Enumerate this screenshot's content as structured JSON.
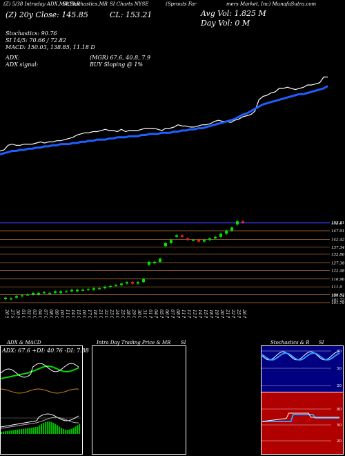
{
  "header": {
    "line1": "(Z) 5/38 Intraday ADX,MACD,R",
    "line1b": "SI,Stochastics,MR",
    "line1c": "SI Charts NYSE",
    "line1d": "(Sprouts Far",
    "line1e": "mers Market, Inc) MunafaSutra.com",
    "price_line": "(Z) 20y Close: 145.85",
    "cl_line": "CL: 153.21",
    "avg_vol": "Avg Vol: 1.825 M",
    "day_vol": "Day Vol: 0  M",
    "stochastics": "Stochastics: 90.76",
    "si": "SI 14/5: 70.66 / 72.82",
    "macd": "MACD: 150.03, 138.85, 11.18 D",
    "adx": "ADX:",
    "adx_vals": "(MGR) 67.6, 40.8, 7.9",
    "adx_signal": "ADX  signal:",
    "adx_signal_val": "BUY Sloping @ 1%"
  },
  "colors": {
    "price_line": "#ffffff",
    "ma_line": "#1f5fff",
    "candle_up": "#00e400",
    "candle_down": "#ff2020",
    "grid": "#c8783c",
    "blue_grid": "#3c3cff"
  },
  "chart_data": [
    {
      "type": "line",
      "title": "",
      "series": [
        {
          "values": [
            95,
            96,
            100,
            101,
            100,
            100,
            101,
            101,
            101,
            102,
            103,
            102,
            103,
            103,
            104,
            104,
            105,
            106,
            107,
            109,
            110,
            111,
            111,
            112,
            112,
            113,
            114,
            113,
            113,
            112,
            114,
            112,
            113,
            113,
            113,
            114,
            115,
            115,
            115,
            114,
            113,
            115,
            115,
            116,
            118,
            117,
            117,
            116,
            116,
            117,
            118,
            118,
            119,
            121,
            122,
            121,
            121,
            120,
            122,
            123,
            125,
            126,
            127,
            130,
            140,
            143,
            144,
            146,
            147,
            150,
            150,
            151,
            150,
            149,
            150,
            151,
            153,
            153,
            154,
            155,
            160,
            160
          ]
        },
        {
          "values": [
            92,
            93,
            94,
            95,
            95,
            96,
            96,
            97,
            97,
            98,
            98,
            99,
            99,
            100,
            100,
            101,
            101,
            101,
            102,
            102,
            103,
            103,
            104,
            104,
            105,
            105,
            105,
            106,
            106,
            107,
            107,
            107,
            108,
            108,
            108,
            109,
            109,
            110,
            110,
            110,
            111,
            111,
            111,
            112,
            112,
            113,
            113,
            114,
            114,
            115,
            115,
            116,
            117,
            118,
            119,
            120,
            121,
            122,
            123,
            125,
            127,
            128,
            130,
            132,
            134,
            136,
            137,
            138,
            139,
            140,
            141,
            142,
            143,
            144,
            145,
            145,
            146,
            147,
            148,
            149,
            150,
            152
          ]
        }
      ]
    },
    {
      "type": "bar",
      "title": "",
      "y_ticks": [
        "153.21",
        "152.8",
        "147.91",
        "142.42",
        "137.34",
        "132.86",
        "127.38",
        "122.48",
        "116.96",
        "111.9",
        "106.82",
        "101.79",
        "101.74",
        "101.72"
      ],
      "x_ticks": [
        "26 Sep",
        "27 Sep",
        "30 Sep",
        "01 Oct",
        "02 Oct",
        "03 Oct",
        "04 Oct",
        "07 Oct",
        "08 Oct",
        "09 Oct",
        "10 Oct",
        "11 Oct",
        "14 Oct",
        "15 Oct",
        "16 Oct",
        "17 Oct",
        "18 Oct",
        "21 Oct",
        "22 Oct",
        "23 Oct",
        "24 Oct",
        "25 Oct",
        "28 Oct",
        "29 Oct",
        "30 Oct",
        "31 Oct",
        "01 Nov",
        "04 Nov",
        "05 Nov",
        "06 Nov",
        "07 Nov",
        "08 Nov",
        "11 Nov",
        "12 Nov",
        "13 Nov",
        "14 Nov",
        "15 Nov",
        "18 Nov",
        "19 Nov",
        "20 Nov",
        "21 Nov",
        "22 Nov",
        "25 Nov",
        "26 Nov"
      ],
      "open": [
        104,
        104,
        105,
        106,
        107,
        107,
        107,
        108,
        108,
        108,
        108,
        109,
        109,
        109,
        110,
        110,
        110,
        111,
        111,
        112,
        113,
        113,
        114,
        115,
        114,
        115,
        126,
        127,
        128,
        138,
        140,
        144,
        145,
        143,
        142,
        142,
        141,
        142,
        143,
        144,
        146,
        148,
        152,
        154
      ],
      "close": [
        105,
        104.5,
        106,
        106.5,
        107,
        108,
        108,
        108.5,
        108,
        109,
        109,
        109,
        110,
        110,
        110,
        110.5,
        111,
        111,
        112,
        112.5,
        113,
        114,
        115,
        114,
        115,
        117,
        128,
        128,
        130,
        140,
        142,
        145,
        144,
        142,
        142,
        141,
        142,
        143,
        144,
        146,
        148,
        150,
        154,
        153
      ]
    }
  ],
  "panels": {
    "adx_title": "ADX  & MACD",
    "adx_vals": "ADX: 67.6  +DI: 40.76  -DI: 7.88",
    "intra_title": "Intra  Day Trading Price  & MR",
    "intra_title2": "SI",
    "stoch_title": "Stochastics & R",
    "stoch_title2": "SI",
    "stoch_ticks": [
      "80",
      "50",
      "20"
    ],
    "rsi_ticks": [
      "80",
      "50",
      "20"
    ]
  }
}
